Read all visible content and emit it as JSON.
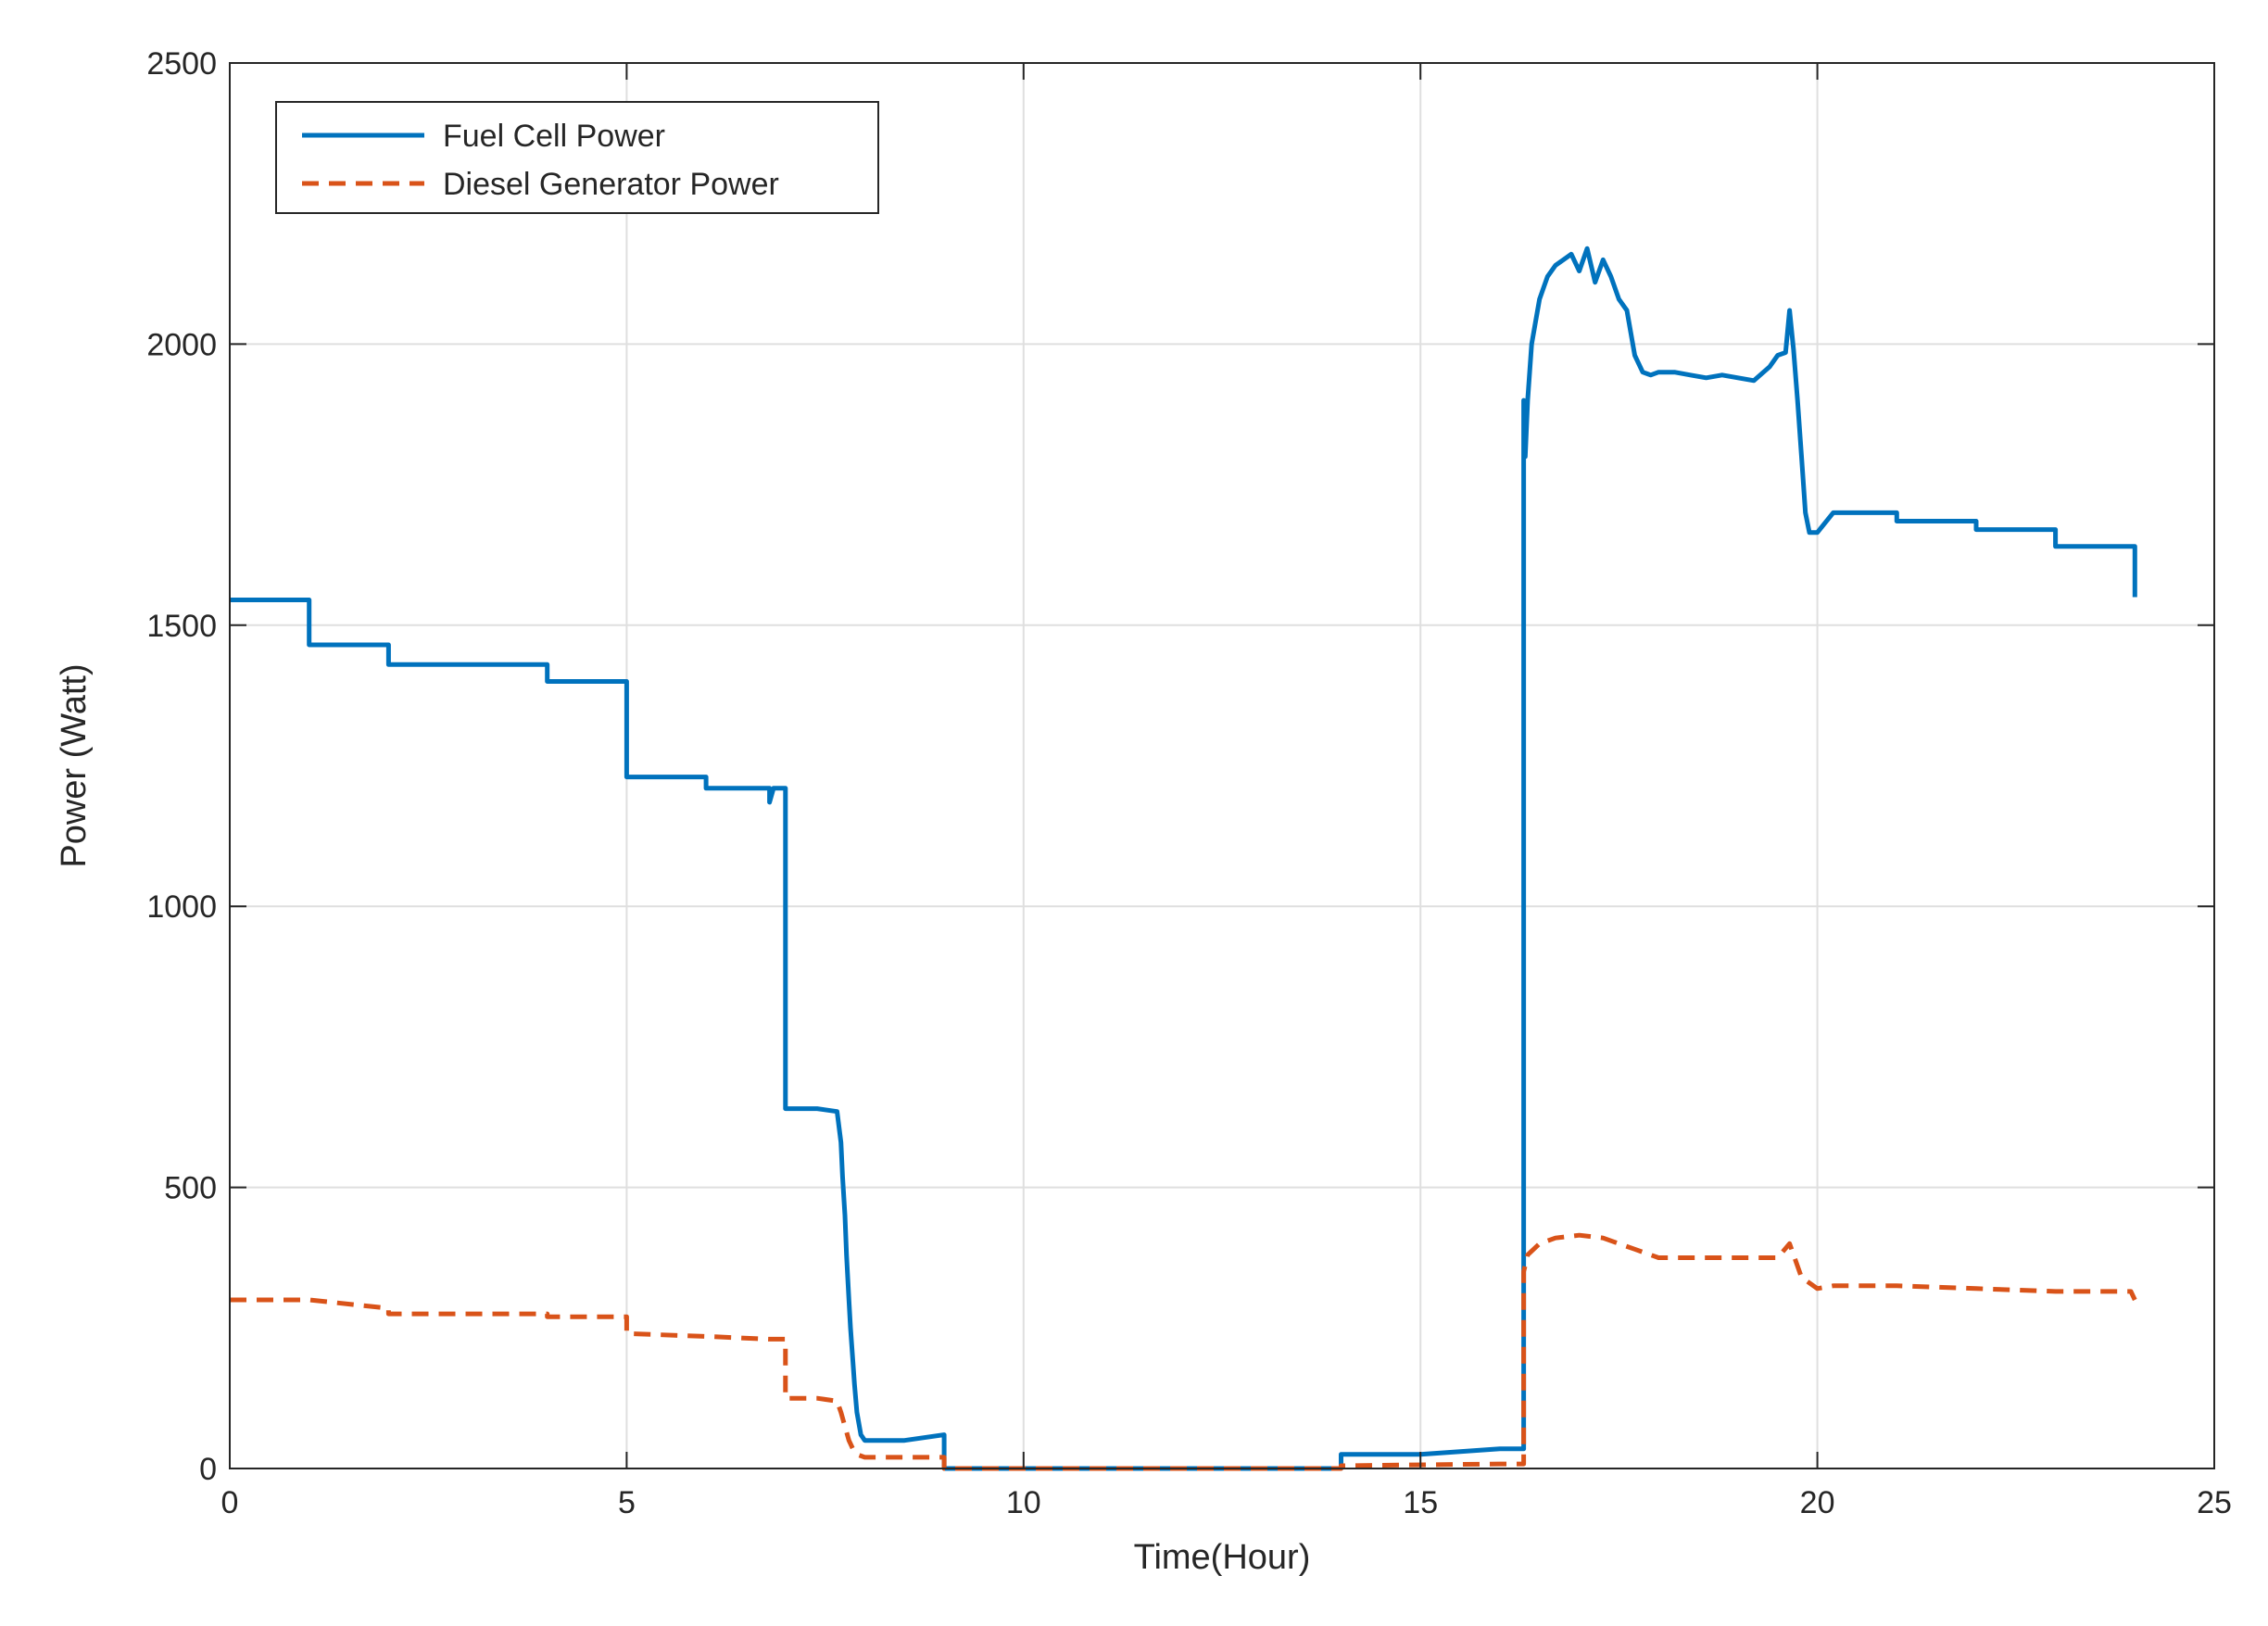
{
  "chart_data": {
    "type": "line",
    "title": "",
    "xlabel": "Time(Hour)",
    "ylabel": "Power (Watt)",
    "xlim": [
      0,
      25
    ],
    "ylim": [
      0,
      2500
    ],
    "xticks": [
      0,
      5,
      10,
      15,
      20,
      25
    ],
    "yticks": [
      0,
      500,
      1000,
      1500,
      2000,
      2500
    ],
    "xtick_labels": [
      "0",
      "5",
      "10",
      "15",
      "20",
      "25"
    ],
    "ytick_labels": [
      "0",
      "500",
      "1000",
      "1500",
      "2000",
      "2500"
    ],
    "grid": true,
    "legend_position": "top-left",
    "series": [
      {
        "name": "Fuel Cell Power",
        "color": "#0072BD",
        "style": "solid",
        "x": [
          0,
          1,
          1,
          2,
          2,
          4,
          4,
          5,
          5,
          6,
          6,
          6.8,
          6.8,
          6.85,
          6.9,
          7,
          7,
          7.4,
          7.65,
          7.7,
          7.72,
          7.75,
          7.77,
          7.8,
          7.82,
          7.85,
          7.87,
          7.9,
          7.95,
          8,
          8.5,
          9,
          9,
          14,
          14,
          15,
          16,
          16.3,
          16.3,
          16.32,
          16.35,
          16.4,
          16.5,
          16.6,
          16.7,
          16.8,
          16.9,
          17,
          17.1,
          17.2,
          17.3,
          17.4,
          17.5,
          17.6,
          17.7,
          17.8,
          17.9,
          18,
          18.2,
          18.4,
          18.6,
          18.8,
          19,
          19.2,
          19.4,
          19.5,
          19.6,
          19.65,
          19.7,
          19.75,
          19.8,
          19.85,
          19.9,
          20,
          20.2,
          21,
          21,
          22,
          22,
          23,
          23,
          23.95,
          24,
          24
        ],
        "y": [
          1545,
          1545,
          1465,
          1465,
          1430,
          1430,
          1400,
          1400,
          1230,
          1230,
          1210,
          1210,
          1185,
          1210,
          1210,
          1210,
          640,
          640,
          635,
          580,
          520,
          450,
          380,
          300,
          250,
          190,
          150,
          100,
          60,
          50,
          50,
          60,
          0,
          0,
          25,
          25,
          35,
          35,
          1900,
          1800,
          1900,
          2000,
          2080,
          2120,
          2140,
          2150,
          2160,
          2130,
          2170,
          2110,
          2150,
          2120,
          2080,
          2060,
          1980,
          1950,
          1945,
          1950,
          1950,
          1945,
          1940,
          1945,
          1940,
          1935,
          1960,
          1980,
          1985,
          2060,
          1990,
          1900,
          1800,
          1700,
          1665,
          1665,
          1700,
          1700,
          1685,
          1685,
          1670,
          1670,
          1640,
          1640,
          1640,
          1550
        ]
      },
      {
        "name": "Diesel Generator Power",
        "color": "#D95319",
        "style": "dashed",
        "x": [
          0,
          1,
          2,
          2,
          4,
          4,
          5,
          5,
          6,
          6.8,
          7,
          7,
          7.4,
          7.65,
          7.7,
          7.75,
          7.8,
          7.85,
          7.9,
          8,
          9,
          9,
          14,
          14,
          16,
          16.3,
          16.3,
          16.35,
          16.5,
          16.7,
          17,
          17.3,
          17.5,
          17.7,
          18,
          19,
          19.5,
          19.65,
          19.7,
          19.8,
          20,
          20.2,
          21,
          22,
          23,
          23.95,
          24,
          24
        ],
        "y": [
          300,
          300,
          285,
          275,
          275,
          270,
          270,
          240,
          235,
          230,
          230,
          125,
          125,
          120,
          100,
          75,
          50,
          35,
          25,
          20,
          20,
          0,
          0,
          5,
          8,
          8,
          350,
          380,
          400,
          410,
          415,
          410,
          400,
          390,
          375,
          375,
          375,
          400,
          380,
          340,
          320,
          325,
          325,
          320,
          315,
          315,
          300,
          300
        ]
      }
    ]
  }
}
